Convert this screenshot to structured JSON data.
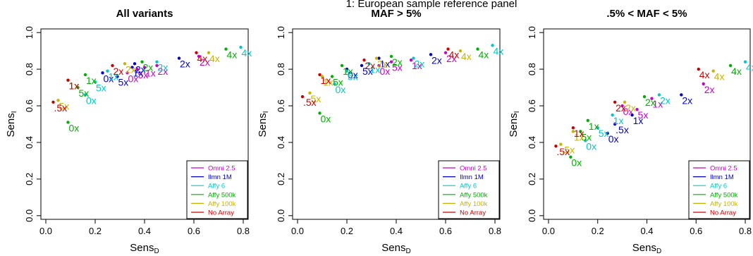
{
  "figure": {
    "suptitle": "1: European sample reference panel"
  },
  "colors": {
    "Omni 2.5": "#cc00cc",
    "Ilmn 1M": "#0000cc",
    "Affy 6": "#00c8c8",
    "Affy 500k": "#00b000",
    "Affy 100k": "#c8b400",
    "No Array": "#cc0000"
  },
  "chart_data": [
    {
      "type": "scatter",
      "title": "All variants",
      "xlabel_main": "Sens",
      "xlabel_sub": "D",
      "ylabel_main": "Sens",
      "ylabel_sub": "I",
      "xlim": [
        -0.02,
        0.82
      ],
      "ylim": [
        -0.02,
        1.02
      ],
      "xticks": [
        0.0,
        0.2,
        0.4,
        0.6,
        0.8
      ],
      "yticks": [
        0.0,
        0.2,
        0.4,
        0.6,
        0.8,
        1.0
      ],
      "xtick_labels": [
        "0.0",
        "0.2",
        "0.4",
        "0.6",
        "0.8"
      ],
      "ytick_labels": [
        "0.0",
        "0.2",
        "0.4",
        "0.6",
        "0.8",
        "1.0"
      ],
      "legend": {
        "placement": "bottom-right",
        "entries": [
          "Omni 2.5",
          "Ilmn 1M",
          "Affy 6",
          "Affy 500k",
          "Affy 100k",
          "No Array"
        ]
      },
      "series": [
        {
          "name": "Omni 2.5",
          "points": [
            {
              "x": 0.33,
              "y": 0.78,
              "label": "0x"
            },
            {
              "x": 0.37,
              "y": 0.8,
              "label": "5x"
            },
            {
              "x": 0.4,
              "y": 0.81,
              "label": "1x"
            },
            {
              "x": 0.45,
              "y": 0.82,
              "label": "2x"
            },
            {
              "x": 0.62,
              "y": 0.87,
              "label": "2x"
            }
          ]
        },
        {
          "name": "Ilmn 1M",
          "points": [
            {
              "x": 0.23,
              "y": 0.78,
              "label": "0x"
            },
            {
              "x": 0.29,
              "y": 0.76,
              "label": "5x"
            },
            {
              "x": 0.35,
              "y": 0.81,
              "label": "1x"
            },
            {
              "x": 0.36,
              "y": 0.83,
              "label": "2x"
            },
            {
              "x": 0.54,
              "y": 0.86,
              "label": "2x"
            }
          ]
        },
        {
          "name": "Affy 6",
          "points": [
            {
              "x": 0.16,
              "y": 0.66,
              "label": "0x"
            },
            {
              "x": 0.2,
              "y": 0.73,
              "label": "5x"
            },
            {
              "x": 0.25,
              "y": 0.79,
              "label": "1x"
            },
            {
              "x": 0.45,
              "y": 0.84,
              "label": "2x"
            },
            {
              "x": 0.79,
              "y": 0.92,
              "label": "4x"
            }
          ]
        },
        {
          "name": "Affy 500k",
          "points": [
            {
              "x": 0.09,
              "y": 0.51,
              "label": "0x"
            },
            {
              "x": 0.13,
              "y": 0.7,
              "label": "5x"
            },
            {
              "x": 0.16,
              "y": 0.77,
              "label": "1x"
            },
            {
              "x": 0.39,
              "y": 0.84,
              "label": "2x"
            },
            {
              "x": 0.73,
              "y": 0.91,
              "label": "4x"
            }
          ]
        },
        {
          "name": "Affy 100k",
          "points": [
            {
              "x": 0.05,
              "y": 0.63,
              "label": "5x"
            },
            {
              "x": 0.09,
              "y": 0.74,
              "label": "1x"
            },
            {
              "x": 0.32,
              "y": 0.83,
              "label": "2x"
            },
            {
              "x": 0.66,
              "y": 0.89,
              "label": "4x"
            }
          ]
        },
        {
          "name": "No Array",
          "points": [
            {
              "x": 0.03,
              "y": 0.62,
              "label": ".5x"
            },
            {
              "x": 0.09,
              "y": 0.74,
              "label": "1x"
            },
            {
              "x": 0.27,
              "y": 0.82,
              "label": "2x"
            },
            {
              "x": 0.61,
              "y": 0.89,
              "label": "4x"
            }
          ]
        }
      ]
    },
    {
      "type": "scatter",
      "title": "MAF > 5%",
      "xlabel_main": "Sens",
      "xlabel_sub": "D",
      "ylabel_main": "Sens",
      "ylabel_sub": "I",
      "xlim": [
        -0.02,
        0.82
      ],
      "ylim": [
        -0.02,
        1.02
      ],
      "xticks": [
        0.0,
        0.2,
        0.4,
        0.6,
        0.8
      ],
      "yticks": [
        0.0,
        0.2,
        0.4,
        0.6,
        0.8,
        1.0
      ],
      "xtick_labels": [
        "0.0",
        "0.2",
        "0.4",
        "0.6",
        "0.8"
      ],
      "ytick_labels": [
        "0.0",
        "0.2",
        "0.4",
        "0.6",
        "0.8",
        "1.0"
      ],
      "legend": {
        "placement": "bottom-right",
        "entries": [
          "Omni 2.5",
          "Ilmn 1M",
          "Affy 6",
          "Affy 500k",
          "Affy 100k",
          "No Array"
        ]
      },
      "series": [
        {
          "name": "Omni 2.5",
          "points": [
            {
              "x": 0.33,
              "y": 0.82,
              "label": "0x"
            },
            {
              "x": 0.38,
              "y": 0.84,
              "label": "5x"
            },
            {
              "x": 0.46,
              "y": 0.85,
              "label": "1x"
            },
            {
              "x": 0.6,
              "y": 0.89,
              "label": "2x"
            }
          ]
        },
        {
          "name": "Ilmn 1M",
          "points": [
            {
              "x": 0.2,
              "y": 0.8,
              "label": "0x"
            },
            {
              "x": 0.26,
              "y": 0.82,
              "label": "5x"
            },
            {
              "x": 0.33,
              "y": 0.86,
              "label": "1x"
            },
            {
              "x": 0.54,
              "y": 0.88,
              "label": "2x"
            }
          ]
        },
        {
          "name": "Affy 6",
          "points": [
            {
              "x": 0.15,
              "y": 0.72,
              "label": "0x"
            },
            {
              "x": 0.2,
              "y": 0.79,
              "label": "5x"
            },
            {
              "x": 0.29,
              "y": 0.83,
              "label": "1x"
            },
            {
              "x": 0.47,
              "y": 0.86,
              "label": "2x"
            },
            {
              "x": 0.79,
              "y": 0.93,
              "label": "4x"
            }
          ]
        },
        {
          "name": "Affy 500k",
          "points": [
            {
              "x": 0.09,
              "y": 0.56,
              "label": "0x"
            },
            {
              "x": 0.14,
              "y": 0.76,
              "label": "5x"
            },
            {
              "x": 0.18,
              "y": 0.82,
              "label": "1x"
            },
            {
              "x": 0.38,
              "y": 0.87,
              "label": "2x"
            },
            {
              "x": 0.73,
              "y": 0.91,
              "label": "4x"
            }
          ]
        },
        {
          "name": "Affy 100k",
          "points": [
            {
              "x": 0.05,
              "y": 0.67,
              "label": "5x"
            },
            {
              "x": 0.1,
              "y": 0.76,
              "label": "1x"
            },
            {
              "x": 0.32,
              "y": 0.86,
              "label": "2x"
            },
            {
              "x": 0.66,
              "y": 0.9,
              "label": "4x"
            }
          ]
        },
        {
          "name": "No Array",
          "points": [
            {
              "x": 0.02,
              "y": 0.65,
              "label": ".5x"
            },
            {
              "x": 0.09,
              "y": 0.77,
              "label": "1x"
            },
            {
              "x": 0.27,
              "y": 0.85,
              "label": "2x"
            },
            {
              "x": 0.61,
              "y": 0.91,
              "label": "4x"
            }
          ]
        }
      ]
    },
    {
      "type": "scatter",
      "title": ".5% < MAF < 5%",
      "xlabel_main": "Sens",
      "xlabel_sub": "D",
      "ylabel_main": "Sens",
      "ylabel_sub": "I",
      "xlim": [
        -0.02,
        0.82
      ],
      "ylim": [
        -0.02,
        1.02
      ],
      "xticks": [
        0.0,
        0.2,
        0.4,
        0.6,
        0.8
      ],
      "yticks": [
        0.0,
        0.2,
        0.4,
        0.6,
        0.8,
        1.0
      ],
      "xtick_labels": [
        "0.0",
        "0.2",
        "0.4",
        "0.6",
        "0.8"
      ],
      "ytick_labels": [
        "0.0",
        "0.2",
        "0.4",
        "0.6",
        "0.8",
        "1.0"
      ],
      "legend": {
        "placement": "bottom-right",
        "entries": [
          "Omni 2.5",
          "Ilmn 1M",
          "Affy 6",
          "Affy 500k",
          "Affy 100k",
          "No Array"
        ]
      },
      "series": [
        {
          "name": "Omni 2.5",
          "points": [
            {
              "x": 0.3,
              "y": 0.6,
              "label": "0x"
            },
            {
              "x": 0.36,
              "y": 0.58,
              "label": "5x"
            },
            {
              "x": 0.42,
              "y": 0.64,
              "label": "1x"
            },
            {
              "x": 0.63,
              "y": 0.72,
              "label": "2x"
            }
          ]
        },
        {
          "name": "Ilmn 1M",
          "points": [
            {
              "x": 0.24,
              "y": 0.45,
              "label": "0x"
            },
            {
              "x": 0.27,
              "y": 0.5,
              "label": ".5x"
            },
            {
              "x": 0.34,
              "y": 0.55,
              "label": "1x"
            },
            {
              "x": 0.54,
              "y": 0.66,
              "label": "2x"
            }
          ]
        },
        {
          "name": "Affy 6",
          "points": [
            {
              "x": 0.15,
              "y": 0.41,
              "label": "0x"
            },
            {
              "x": 0.2,
              "y": 0.48,
              "label": "5x"
            },
            {
              "x": 0.26,
              "y": 0.55,
              "label": "1x"
            },
            {
              "x": 0.45,
              "y": 0.66,
              "label": "2x"
            },
            {
              "x": 0.8,
              "y": 0.84,
              "label": "4x"
            }
          ]
        },
        {
          "name": "Affy 500k",
          "points": [
            {
              "x": 0.09,
              "y": 0.32,
              "label": "0x"
            },
            {
              "x": 0.13,
              "y": 0.46,
              "label": "5x"
            },
            {
              "x": 0.16,
              "y": 0.52,
              "label": "1x"
            },
            {
              "x": 0.39,
              "y": 0.65,
              "label": "2x"
            },
            {
              "x": 0.74,
              "y": 0.82,
              "label": "4x"
            }
          ]
        },
        {
          "name": "Affy 100k",
          "points": [
            {
              "x": 0.05,
              "y": 0.39,
              "label": ".5x"
            },
            {
              "x": 0.1,
              "y": 0.46,
              "label": "1x"
            },
            {
              "x": 0.31,
              "y": 0.62,
              "label": "2x"
            },
            {
              "x": 0.67,
              "y": 0.79,
              "label": "4x"
            }
          ]
        },
        {
          "name": "No Array",
          "points": [
            {
              "x": 0.03,
              "y": 0.38,
              "label": ".5x"
            },
            {
              "x": 0.1,
              "y": 0.48,
              "label": "1x"
            },
            {
              "x": 0.27,
              "y": 0.62,
              "label": "2x"
            },
            {
              "x": 0.61,
              "y": 0.8,
              "label": "4x"
            }
          ]
        }
      ]
    }
  ]
}
